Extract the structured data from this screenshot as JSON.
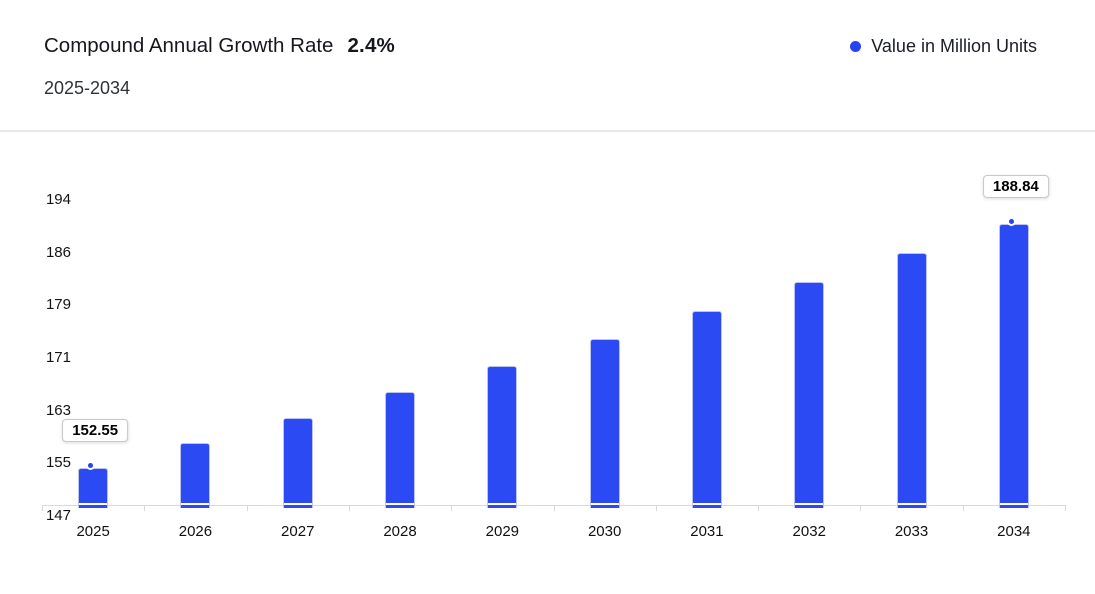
{
  "header": {
    "title": "Compound Annual Growth Rate",
    "cagr_value": "2.4%",
    "subtitle": "2025-2034"
  },
  "legend": {
    "label": "Value in Million Units"
  },
  "chart_data": {
    "type": "bar",
    "title": "Compound Annual Growth Rate 2.4%",
    "subtitle": "2025-2034",
    "categories": [
      "2025",
      "2026",
      "2027",
      "2028",
      "2029",
      "2030",
      "2031",
      "2032",
      "2033",
      "2034"
    ],
    "series": [
      {
        "name": "Value in Million Units",
        "values": [
          152.55,
          156.21,
          159.96,
          163.8,
          167.73,
          171.76,
          175.88,
          180.1,
          184.42,
          188.84
        ]
      }
    ],
    "xlabel": "",
    "ylabel": "",
    "ylim": [
      147,
      194
    ],
    "y_tick_labels": [
      "147",
      "155",
      "163",
      "171",
      "179",
      "186",
      "194"
    ],
    "grid": false,
    "legend_position": "top-right",
    "point_labels": [
      {
        "category": "2025",
        "text": "152.55"
      },
      {
        "category": "2034",
        "text": "188.84"
      }
    ],
    "colors": {
      "bar": "#2b4af3",
      "bar_border": "#b9c3ee",
      "marker": "#2443f2",
      "axis_line": "#d9d9d9",
      "accent": "#1a3ef0"
    }
  }
}
